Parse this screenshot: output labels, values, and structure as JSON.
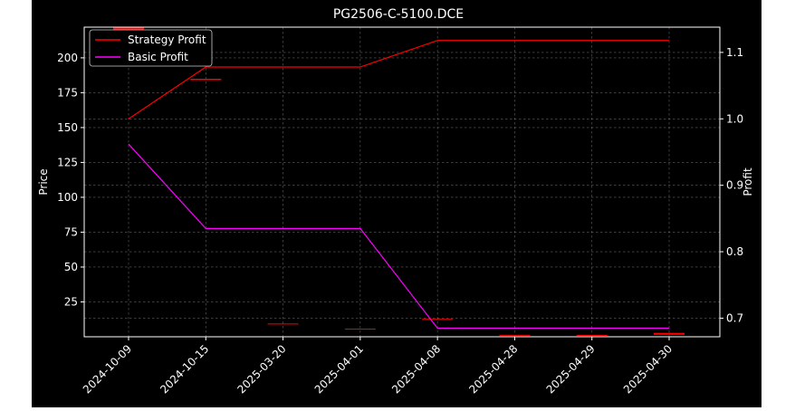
{
  "chart_data": {
    "type": "line",
    "title": "PG2506-C-5100.DCE",
    "xlabel": "",
    "ylabel": "Price",
    "y2label": "Profit",
    "categories": [
      "2024-10-09",
      "2024-10-15",
      "2025-03-20",
      "2025-04-01",
      "2025-04-08",
      "2025-04-28",
      "2025-04-29",
      "2025-04-30"
    ],
    "ylim": [
      0,
      222
    ],
    "yticks": [
      25,
      50,
      75,
      100,
      125,
      150,
      175,
      200
    ],
    "y2lim": [
      0.672,
      1.138
    ],
    "y2ticks": [
      0.7,
      0.8,
      0.9,
      1.0,
      1.1
    ],
    "grid": true,
    "legend_position": "upper-left",
    "series": [
      {
        "name": "Strategy Profit",
        "axis": "right",
        "color": "#ff0000",
        "values": [
          1.0,
          1.078,
          1.078,
          1.078,
          1.118,
          1.118,
          1.118,
          1.118
        ]
      },
      {
        "name": "Basic Profit",
        "axis": "right",
        "color": "#ff00ff",
        "values": [
          0.962,
          0.835,
          0.835,
          0.835,
          0.685,
          0.685,
          0.685,
          0.685
        ]
      }
    ],
    "candles": {
      "axis": "left",
      "color": "#ff0000",
      "items": [
        {
          "open": 215,
          "close": 223
        },
        {
          "open": 185,
          "close": 184
        },
        {
          "open": 9.5,
          "close": 9.2
        },
        {
          "open": 5.8,
          "close": 5.5
        },
        {
          "open": 12.8,
          "close": 12.4
        },
        {
          "open": 1.4,
          "close": 0.9
        },
        {
          "open": 1.3,
          "close": 0.9
        },
        {
          "open": 2.8,
          "close": 1.4
        }
      ]
    }
  }
}
